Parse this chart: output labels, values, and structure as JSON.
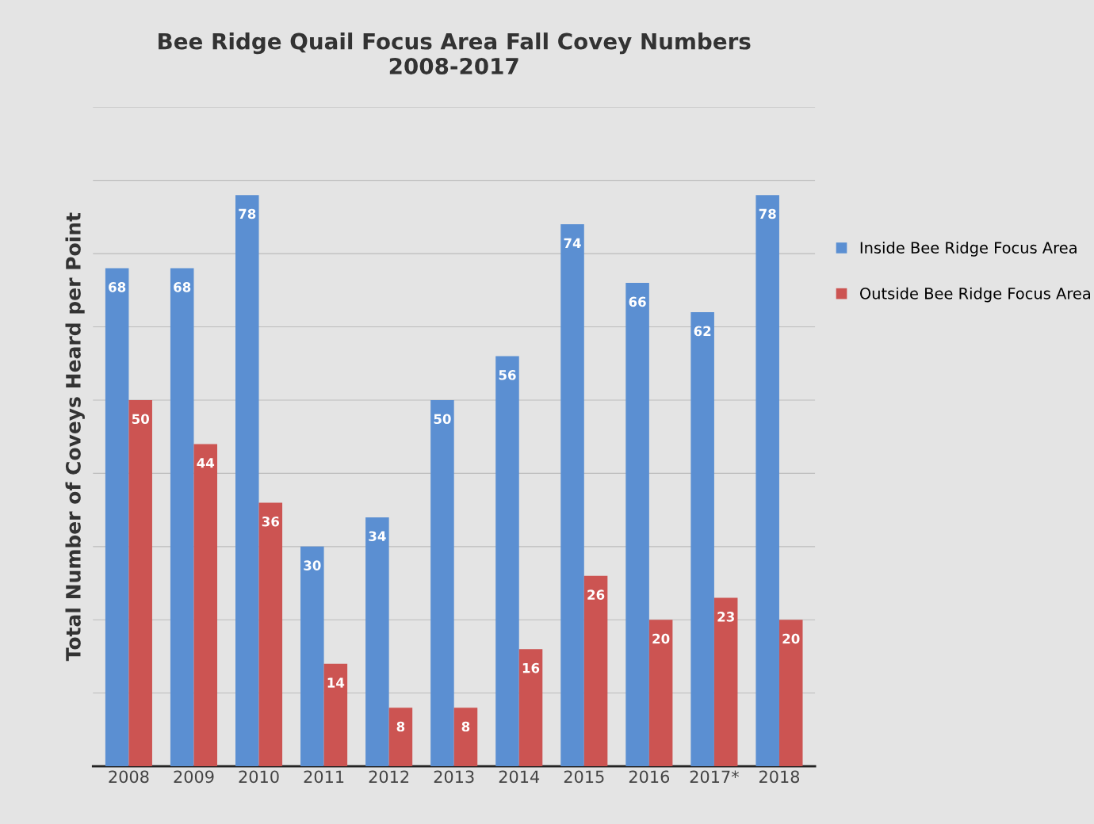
{
  "chart_data": {
    "type": "bar",
    "title": "Bee Ridge Quail Focus Area Fall Covey Numbers\n2008-2017",
    "ylabel": "Total Number of Coveys Heard per Point",
    "categories": [
      "2008",
      "2009",
      "2010",
      "2011",
      "2012",
      "2013",
      "2014",
      "2015",
      "2016",
      "2017*",
      "2018"
    ],
    "series": [
      {
        "name": "Inside Bee Ridge Focus Area",
        "color": "#5b8fd2",
        "values": [
          68,
          68,
          78,
          30,
          34,
          50,
          56,
          74,
          66,
          62,
          78
        ]
      },
      {
        "name": "Outside Bee Ridge Focus Area",
        "color": "#cc5452",
        "values": [
          50,
          44,
          36,
          14,
          8,
          8,
          16,
          26,
          20,
          23,
          20
        ]
      }
    ],
    "ylim": [
      0,
      90
    ],
    "yticks": [
      {
        "value": 0,
        "label": null
      },
      {
        "value": 10,
        "label": null
      },
      {
        "value": 20,
        "label": null
      },
      {
        "value": 30,
        "label": null
      },
      {
        "value": 40,
        "label": null
      },
      {
        "value": 50,
        "label": null
      },
      {
        "value": 60,
        "label": null
      },
      {
        "value": 70,
        "label": null
      },
      {
        "value": 80,
        "label": null
      },
      {
        "value": 90,
        "label": null
      }
    ],
    "grid": "y",
    "legend": "right",
    "data_labels": true
  }
}
